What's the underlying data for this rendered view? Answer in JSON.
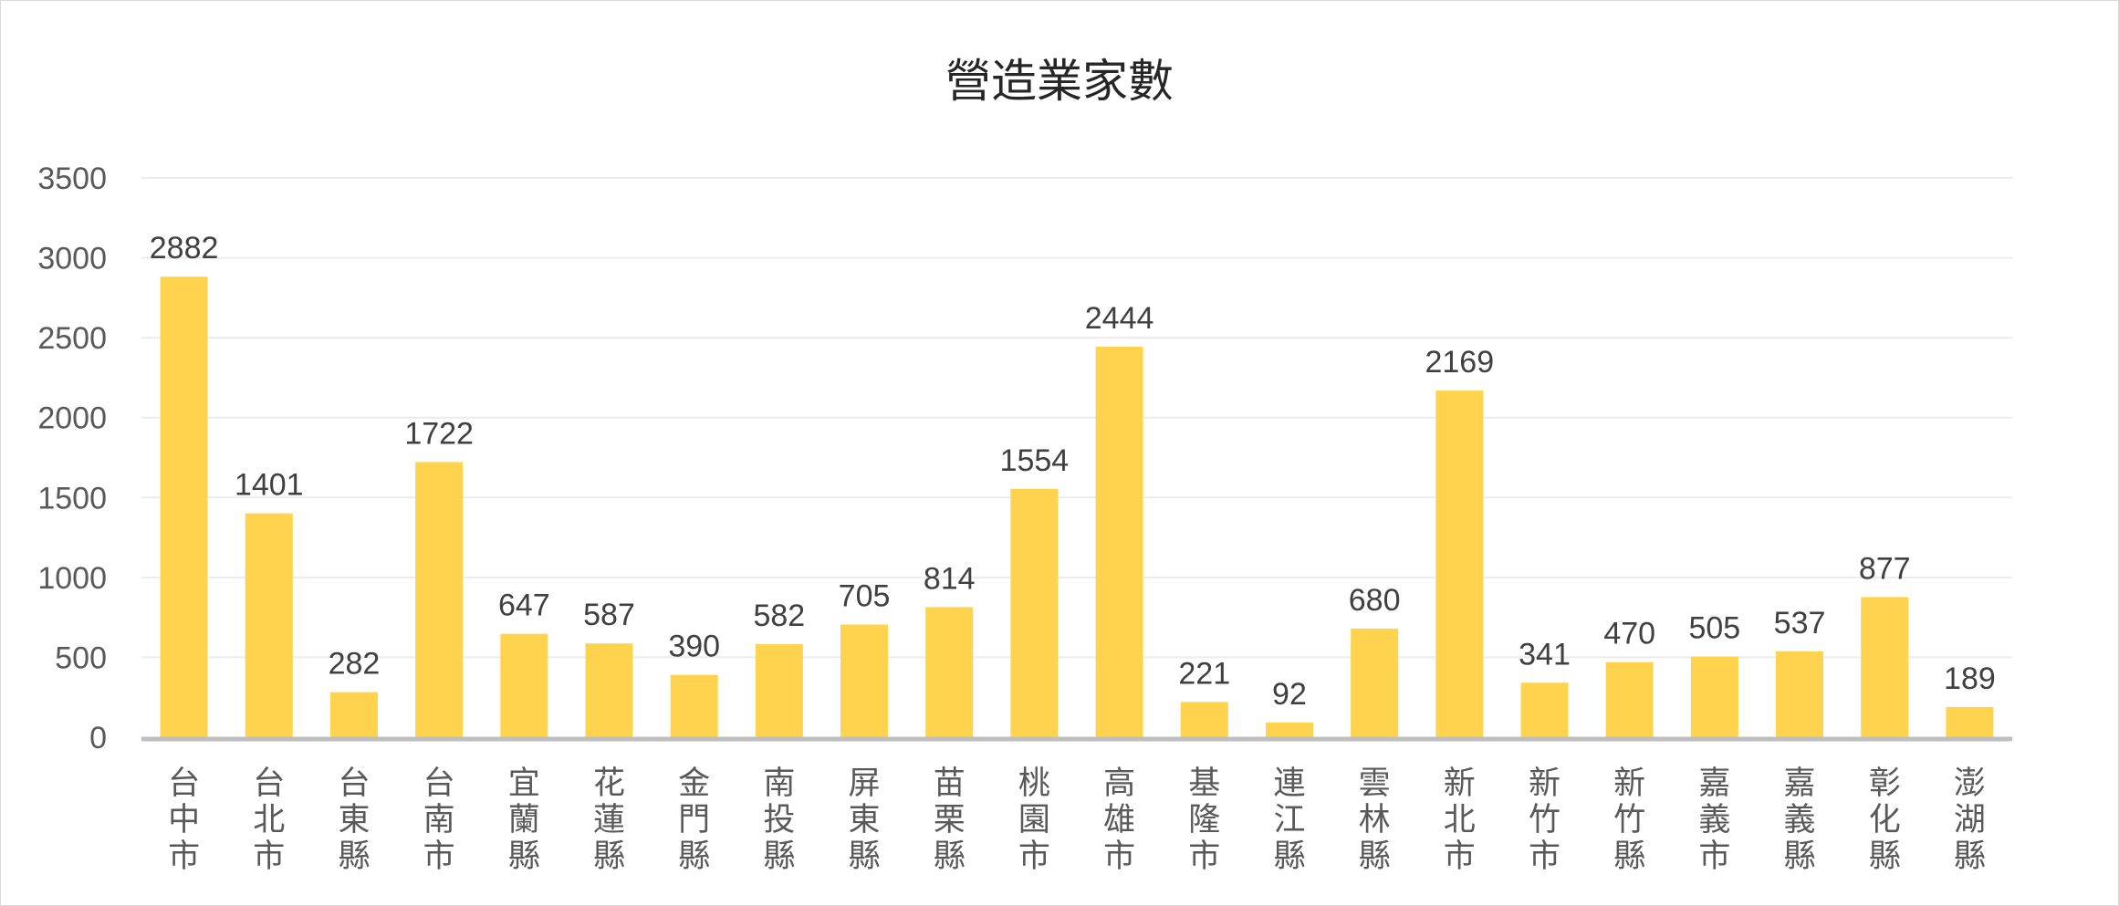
{
  "chart_data": {
    "type": "bar",
    "title": "營造業家數",
    "xlabel": "",
    "ylabel": "",
    "ylim": [
      0,
      3500
    ],
    "yticks": [
      0,
      500,
      1000,
      1500,
      2000,
      2500,
      3000,
      3500
    ],
    "grid": true,
    "legend": "none",
    "bar_color": "#FFD34E",
    "categories": [
      "台中市",
      "台北市",
      "台東縣",
      "台南市",
      "宜蘭縣",
      "花蓮縣",
      "金門縣",
      "南投縣",
      "屏東縣",
      "苗栗縣",
      "桃園市",
      "高雄市",
      "基隆市",
      "連江縣",
      "雲林縣",
      "新北市",
      "新竹市",
      "新竹縣",
      "嘉義市",
      "嘉義縣",
      "彰化縣",
      "澎湖縣"
    ],
    "values": [
      2882,
      1401,
      282,
      1722,
      647,
      587,
      390,
      582,
      705,
      814,
      1554,
      2444,
      221,
      92,
      680,
      2169,
      341,
      470,
      505,
      537,
      877,
      189
    ]
  }
}
